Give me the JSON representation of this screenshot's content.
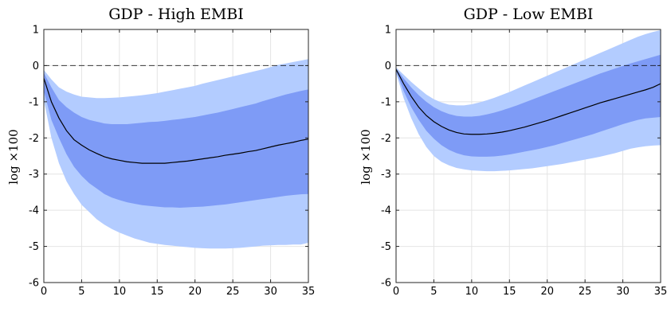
{
  "chart_data": [
    {
      "type": "area",
      "title": "GDP - High EMBI",
      "xlabel": "",
      "ylabel": "log ×100",
      "xlim": [
        0,
        35
      ],
      "ylim": [
        -6,
        1
      ],
      "xticks": [
        0,
        5,
        10,
        15,
        20,
        25,
        30,
        35
      ],
      "yticks": [
        -6,
        -5,
        -4,
        -3,
        -2,
        -1,
        0,
        1
      ],
      "grid": true,
      "reference_line": 0,
      "x": [
        0,
        1,
        2,
        3,
        4,
        5,
        6,
        7,
        8,
        9,
        10,
        11,
        12,
        13,
        14,
        15,
        16,
        17,
        18,
        19,
        20,
        21,
        22,
        23,
        24,
        25,
        26,
        27,
        28,
        29,
        30,
        31,
        32,
        33,
        34,
        35
      ],
      "median": [
        -0.35,
        -1.0,
        -1.45,
        -1.8,
        -2.05,
        -2.2,
        -2.33,
        -2.43,
        -2.52,
        -2.58,
        -2.62,
        -2.66,
        -2.68,
        -2.7,
        -2.7,
        -2.7,
        -2.7,
        -2.68,
        -2.66,
        -2.64,
        -2.61,
        -2.58,
        -2.55,
        -2.52,
        -2.48,
        -2.45,
        -2.42,
        -2.38,
        -2.35,
        -2.3,
        -2.25,
        -2.2,
        -2.16,
        -2.12,
        -2.07,
        -2.03
      ],
      "band_inner_upper": [
        -0.2,
        -0.6,
        -0.95,
        -1.15,
        -1.3,
        -1.42,
        -1.5,
        -1.55,
        -1.6,
        -1.62,
        -1.62,
        -1.62,
        -1.6,
        -1.58,
        -1.56,
        -1.55,
        -1.53,
        -1.5,
        -1.48,
        -1.45,
        -1.42,
        -1.38,
        -1.34,
        -1.3,
        -1.25,
        -1.2,
        -1.15,
        -1.1,
        -1.05,
        -0.98,
        -0.92,
        -0.86,
        -0.8,
        -0.75,
        -0.7,
        -0.66
      ],
      "band_inner_lower": [
        -0.7,
        -1.5,
        -2.0,
        -2.45,
        -2.8,
        -3.05,
        -3.25,
        -3.4,
        -3.55,
        -3.65,
        -3.72,
        -3.78,
        -3.82,
        -3.86,
        -3.88,
        -3.9,
        -3.92,
        -3.92,
        -3.93,
        -3.92,
        -3.91,
        -3.9,
        -3.88,
        -3.86,
        -3.84,
        -3.81,
        -3.78,
        -3.75,
        -3.72,
        -3.69,
        -3.66,
        -3.63,
        -3.6,
        -3.58,
        -3.56,
        -3.55
      ],
      "band_outer_upper": [
        -0.12,
        -0.38,
        -0.6,
        -0.72,
        -0.8,
        -0.86,
        -0.88,
        -0.9,
        -0.9,
        -0.89,
        -0.88,
        -0.86,
        -0.84,
        -0.82,
        -0.79,
        -0.76,
        -0.72,
        -0.68,
        -0.64,
        -0.6,
        -0.56,
        -0.5,
        -0.45,
        -0.4,
        -0.35,
        -0.3,
        -0.25,
        -0.2,
        -0.15,
        -0.1,
        -0.04,
        0.02,
        0.06,
        0.1,
        0.14,
        0.18
      ],
      "band_outer_lower": [
        -0.95,
        -2.0,
        -2.7,
        -3.2,
        -3.55,
        -3.85,
        -4.05,
        -4.25,
        -4.4,
        -4.52,
        -4.62,
        -4.7,
        -4.78,
        -4.84,
        -4.9,
        -4.93,
        -4.96,
        -4.98,
        -5.0,
        -5.02,
        -5.04,
        -5.05,
        -5.06,
        -5.06,
        -5.06,
        -5.05,
        -5.04,
        -5.02,
        -5.0,
        -4.98,
        -4.97,
        -4.96,
        -4.96,
        -4.95,
        -4.95,
        -4.9
      ]
    },
    {
      "type": "area",
      "title": "GDP - Low EMBI",
      "xlabel": "",
      "ylabel": "log ×100",
      "xlim": [
        0,
        35
      ],
      "ylim": [
        -6,
        1
      ],
      "xticks": [
        0,
        5,
        10,
        15,
        20,
        25,
        30,
        35
      ],
      "yticks": [
        -6,
        -5,
        -4,
        -3,
        -2,
        -1,
        0,
        1
      ],
      "grid": true,
      "reference_line": 0,
      "x": [
        0,
        1,
        2,
        3,
        4,
        5,
        6,
        7,
        8,
        9,
        10,
        11,
        12,
        13,
        14,
        15,
        16,
        17,
        18,
        19,
        20,
        21,
        22,
        23,
        24,
        25,
        26,
        27,
        28,
        29,
        30,
        31,
        32,
        33,
        34,
        35
      ],
      "median": [
        -0.1,
        -0.5,
        -0.85,
        -1.15,
        -1.38,
        -1.55,
        -1.68,
        -1.78,
        -1.85,
        -1.89,
        -1.9,
        -1.9,
        -1.89,
        -1.87,
        -1.84,
        -1.8,
        -1.75,
        -1.7,
        -1.64,
        -1.58,
        -1.52,
        -1.45,
        -1.38,
        -1.31,
        -1.24,
        -1.17,
        -1.1,
        -1.03,
        -0.97,
        -0.91,
        -0.85,
        -0.79,
        -0.73,
        -0.67,
        -0.6,
        -0.5
      ],
      "band_inner_upper": [
        -0.08,
        -0.35,
        -0.6,
        -0.82,
        -1.0,
        -1.15,
        -1.26,
        -1.34,
        -1.39,
        -1.41,
        -1.41,
        -1.39,
        -1.35,
        -1.3,
        -1.24,
        -1.17,
        -1.1,
        -1.02,
        -0.94,
        -0.86,
        -0.78,
        -0.7,
        -0.62,
        -0.54,
        -0.46,
        -0.38,
        -0.3,
        -0.22,
        -0.15,
        -0.08,
        -0.01,
        0.06,
        0.12,
        0.18,
        0.24,
        0.3
      ],
      "band_inner_lower": [
        -0.15,
        -0.7,
        -1.15,
        -1.5,
        -1.8,
        -2.02,
        -2.2,
        -2.33,
        -2.42,
        -2.48,
        -2.51,
        -2.52,
        -2.52,
        -2.51,
        -2.49,
        -2.46,
        -2.42,
        -2.38,
        -2.34,
        -2.3,
        -2.25,
        -2.2,
        -2.14,
        -2.08,
        -2.02,
        -1.96,
        -1.9,
        -1.83,
        -1.76,
        -1.69,
        -1.62,
        -1.56,
        -1.5,
        -1.46,
        -1.44,
        -1.42
      ],
      "band_outer_upper": [
        -0.05,
        -0.25,
        -0.45,
        -0.63,
        -0.8,
        -0.93,
        -1.02,
        -1.08,
        -1.1,
        -1.1,
        -1.07,
        -1.02,
        -0.96,
        -0.89,
        -0.81,
        -0.73,
        -0.64,
        -0.55,
        -0.46,
        -0.37,
        -0.28,
        -0.19,
        -0.1,
        -0.01,
        0.08,
        0.17,
        0.26,
        0.35,
        0.44,
        0.53,
        0.62,
        0.71,
        0.8,
        0.87,
        0.93,
        0.98
      ],
      "band_outer_lower": [
        -0.2,
        -0.9,
        -1.45,
        -1.9,
        -2.25,
        -2.5,
        -2.66,
        -2.76,
        -2.83,
        -2.87,
        -2.9,
        -2.91,
        -2.92,
        -2.92,
        -2.91,
        -2.9,
        -2.88,
        -2.86,
        -2.84,
        -2.81,
        -2.78,
        -2.75,
        -2.72,
        -2.68,
        -2.64,
        -2.6,
        -2.56,
        -2.52,
        -2.47,
        -2.42,
        -2.36,
        -2.3,
        -2.26,
        -2.23,
        -2.21,
        -2.2
      ]
    }
  ],
  "colors": {
    "outer_band": "#b3ccff",
    "inner_band": "#7e9bf6",
    "median_line": "#000000",
    "zero_line": "#000000",
    "grid": "#e4e4e4",
    "axes": "#262626"
  }
}
